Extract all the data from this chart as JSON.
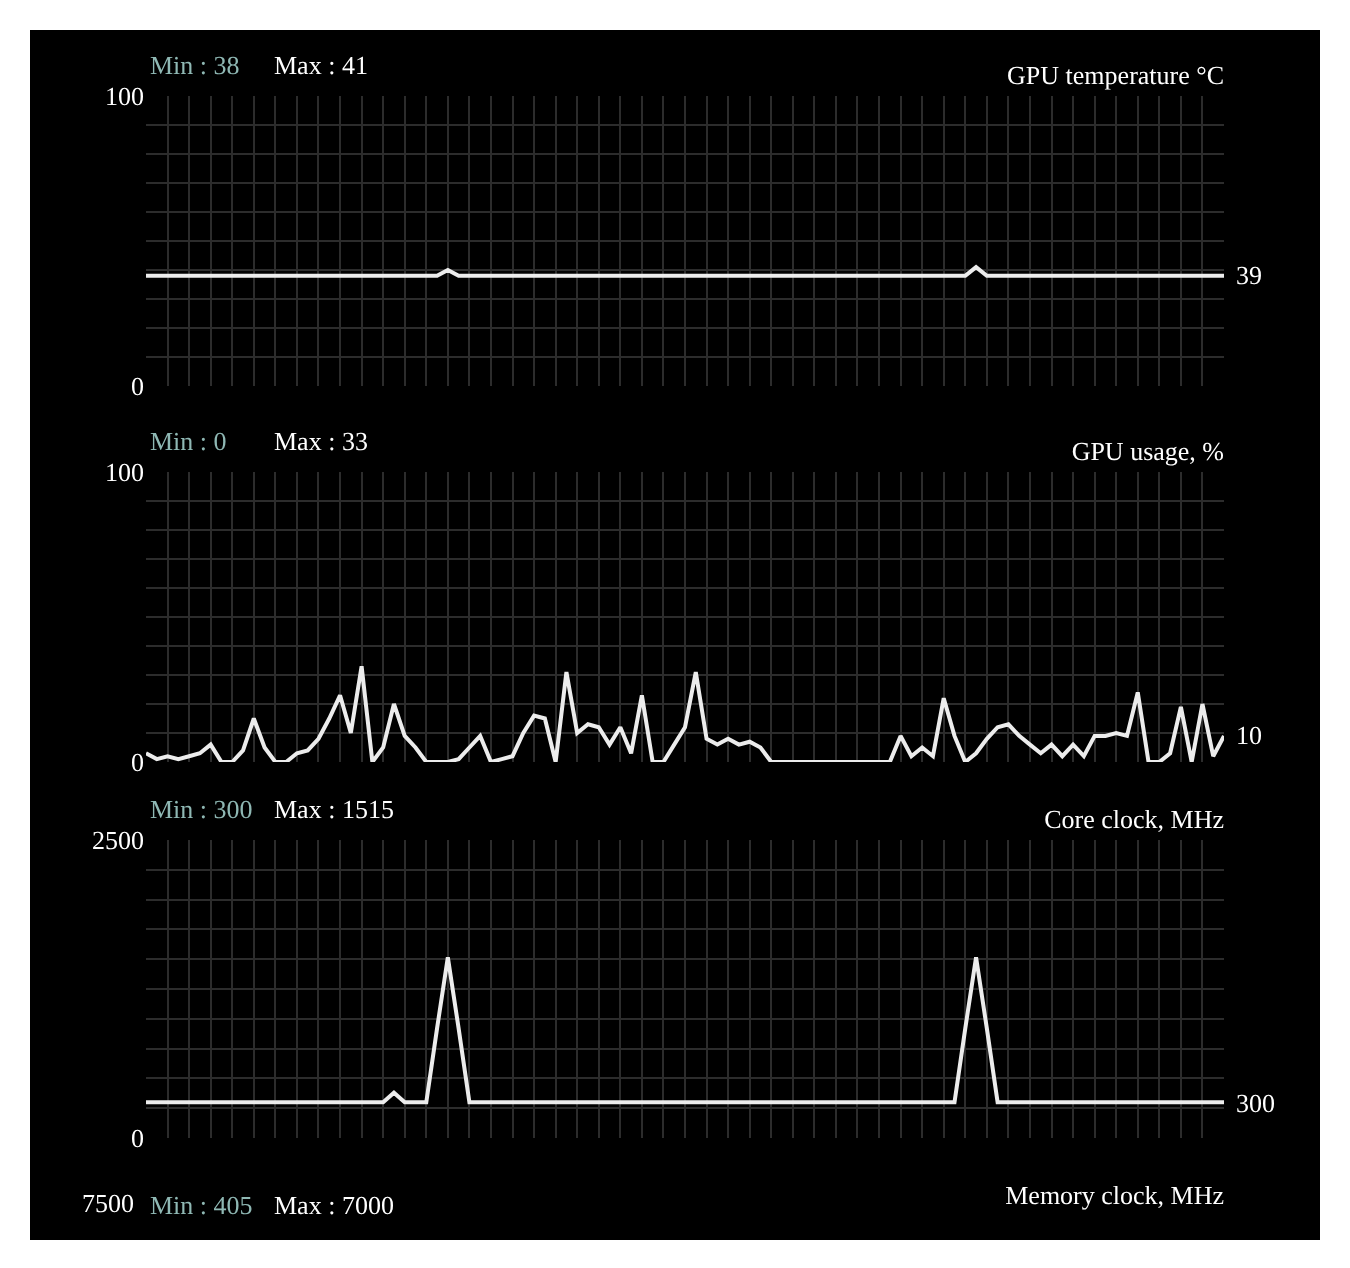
{
  "chart_data": [
    {
      "type": "line",
      "title": "GPU temperature °C",
      "annotations": [
        "Min : 38",
        "Max : 41",
        "39"
      ],
      "color": "#ececec",
      "grid": true,
      "tick_labels": "y",
      "categories": [
        null,
        null,
        null,
        null,
        null,
        null,
        null,
        null,
        null,
        null,
        null,
        null,
        null,
        null,
        null,
        null,
        null,
        null,
        null,
        null,
        null,
        null,
        null,
        null,
        null,
        null,
        null,
        null,
        null,
        null,
        null,
        null,
        null,
        null,
        null,
        null,
        null,
        null,
        null,
        null,
        null,
        null,
        null,
        null,
        null,
        null,
        null,
        null,
        null,
        null,
        null,
        null,
        null,
        null,
        null,
        null,
        null,
        null,
        null,
        null,
        null,
        null,
        null,
        null,
        null,
        null,
        null,
        null,
        null,
        null,
        null,
        null,
        null,
        null,
        null,
        null,
        null,
        null,
        null,
        null,
        null,
        null,
        null,
        null,
        null,
        null,
        null,
        null,
        null,
        null,
        null,
        null,
        null,
        null,
        null,
        null,
        null,
        null,
        null,
        null,
        null
      ],
      "values": [
        38,
        38,
        38,
        38,
        38,
        38,
        38,
        38,
        38,
        38,
        38,
        38,
        38,
        38,
        38,
        38,
        38,
        38,
        38,
        38,
        38,
        38,
        38,
        38,
        38,
        38,
        38,
        38,
        40,
        38,
        38,
        38,
        38,
        38,
        38,
        38,
        38,
        38,
        38,
        38,
        38,
        38,
        38,
        38,
        38,
        38,
        38,
        38,
        38,
        38,
        38,
        38,
        38,
        38,
        38,
        38,
        38,
        38,
        38,
        38,
        38,
        38,
        38,
        38,
        38,
        38,
        38,
        38,
        38,
        38,
        38,
        38,
        38,
        38,
        38,
        38,
        38,
        41,
        38,
        38,
        38,
        38,
        38,
        38,
        38,
        38,
        38,
        38,
        38,
        38,
        38,
        38,
        38,
        38,
        38,
        38,
        38,
        38,
        38,
        38,
        38
      ],
      "ylim": [
        0,
        100
      ],
      "yticks": [
        0,
        {
          "value": 10,
          "label": null
        },
        {
          "value": 20,
          "label": null
        },
        {
          "value": 30,
          "label": null
        },
        {
          "value": 40,
          "label": null
        },
        {
          "value": 50,
          "label": null
        },
        {
          "value": 60,
          "label": null
        },
        {
          "value": 70,
          "label": null
        },
        {
          "value": 80,
          "label": null
        },
        {
          "value": 90,
          "label": null
        },
        100
      ]
    },
    {
      "type": "line",
      "title": "GPU usage, %",
      "annotations": [
        "Min : 0",
        "Max : 33",
        "10"
      ],
      "color": "#ececec",
      "grid": true,
      "tick_labels": "y",
      "categories": [
        null,
        null,
        null,
        null,
        null,
        null,
        null,
        null,
        null,
        null,
        null,
        null,
        null,
        null,
        null,
        null,
        null,
        null,
        null,
        null,
        null,
        null,
        null,
        null,
        null,
        null,
        null,
        null,
        null,
        null,
        null,
        null,
        null,
        null,
        null,
        null,
        null,
        null,
        null,
        null,
        null,
        null,
        null,
        null,
        null,
        null,
        null,
        null,
        null,
        null,
        null,
        null,
        null,
        null,
        null,
        null,
        null,
        null,
        null,
        null,
        null,
        null,
        null,
        null,
        null,
        null,
        null,
        null,
        null,
        null,
        null,
        null,
        null,
        null,
        null,
        null,
        null,
        null,
        null,
        null,
        null,
        null,
        null,
        null,
        null,
        null,
        null,
        null,
        null,
        null,
        null,
        null,
        null,
        null,
        null,
        null,
        null,
        null,
        null,
        null,
        null
      ],
      "values": [
        3,
        1,
        2,
        1,
        2,
        3,
        6,
        0,
        0,
        4,
        15,
        5,
        0,
        0,
        3,
        4,
        8,
        15,
        23,
        10,
        33,
        0,
        5,
        20,
        9,
        5,
        0,
        0,
        0,
        1,
        5,
        9,
        0,
        1,
        2,
        10,
        16,
        15,
        0,
        31,
        10,
        13,
        12,
        6,
        12,
        3,
        23,
        0,
        0,
        6,
        12,
        31,
        8,
        6,
        8,
        6,
        7,
        5,
        0,
        0,
        0,
        0,
        0,
        0,
        0,
        0,
        0,
        0,
        0,
        0,
        9,
        2,
        5,
        2,
        22,
        9,
        0,
        3,
        8,
        12,
        13,
        9,
        6,
        3,
        6,
        2,
        6,
        2,
        9,
        9,
        10,
        9,
        24,
        0,
        0,
        3,
        19,
        0,
        20,
        2,
        9
      ],
      "ylim": [
        0,
        100
      ],
      "yticks": [
        0,
        {
          "value": 10,
          "label": null
        },
        {
          "value": 20,
          "label": null
        },
        {
          "value": 30,
          "label": null
        },
        {
          "value": 40,
          "label": null
        },
        {
          "value": 50,
          "label": null
        },
        {
          "value": 60,
          "label": null
        },
        {
          "value": 70,
          "label": null
        },
        {
          "value": 80,
          "label": null
        },
        {
          "value": 90,
          "label": null
        },
        100
      ]
    },
    {
      "type": "line",
      "title": "Core clock, MHz",
      "annotations": [
        "Min : 300",
        "Max : 1515",
        "300"
      ],
      "color": "#ececec",
      "grid": true,
      "tick_labels": "y",
      "categories": [
        null,
        null,
        null,
        null,
        null,
        null,
        null,
        null,
        null,
        null,
        null,
        null,
        null,
        null,
        null,
        null,
        null,
        null,
        null,
        null,
        null,
        null,
        null,
        null,
        null,
        null,
        null,
        null,
        null,
        null,
        null,
        null,
        null,
        null,
        null,
        null,
        null,
        null,
        null,
        null,
        null,
        null,
        null,
        null,
        null,
        null,
        null,
        null,
        null,
        null,
        null,
        null,
        null,
        null,
        null,
        null,
        null,
        null,
        null,
        null,
        null,
        null,
        null,
        null,
        null,
        null,
        null,
        null,
        null,
        null,
        null,
        null,
        null,
        null,
        null,
        null,
        null,
        null,
        null,
        null,
        null,
        null,
        null,
        null,
        null,
        null,
        null,
        null,
        null,
        null,
        null,
        null,
        null,
        null,
        null,
        null,
        null,
        null,
        null,
        null,
        null
      ],
      "values": [
        300,
        300,
        300,
        300,
        300,
        300,
        300,
        300,
        300,
        300,
        300,
        300,
        300,
        300,
        300,
        300,
        300,
        300,
        300,
        300,
        300,
        300,
        300,
        380,
        300,
        300,
        300,
        920,
        1515,
        920,
        300,
        300,
        300,
        300,
        300,
        300,
        300,
        300,
        300,
        300,
        300,
        300,
        300,
        300,
        300,
        300,
        300,
        300,
        300,
        300,
        300,
        300,
        300,
        300,
        300,
        300,
        300,
        300,
        300,
        300,
        300,
        300,
        300,
        300,
        300,
        300,
        300,
        300,
        300,
        300,
        300,
        300,
        300,
        300,
        300,
        300,
        920,
        1515,
        920,
        300,
        300,
        300,
        300,
        300,
        300,
        300,
        300,
        300,
        300,
        300,
        300,
        300,
        300,
        300,
        300,
        300,
        300,
        300,
        300,
        300,
        300
      ],
      "ylim": [
        0,
        2500
      ],
      "yticks": [
        0,
        {
          "value": 250,
          "label": null
        },
        {
          "value": 500,
          "label": null
        },
        {
          "value": 750,
          "label": null
        },
        {
          "value": 1000,
          "label": null
        },
        {
          "value": 1250,
          "label": null
        },
        {
          "value": 1500,
          "label": null
        },
        {
          "value": 1750,
          "label": null
        },
        {
          "value": 2000,
          "label": null
        },
        {
          "value": 2250,
          "label": null
        },
        2500
      ]
    },
    {
      "type": "other",
      "title": "Memory clock, MHz",
      "annotations": [
        "Min : 405",
        "Max : 7000",
        "7500"
      ]
    }
  ]
}
